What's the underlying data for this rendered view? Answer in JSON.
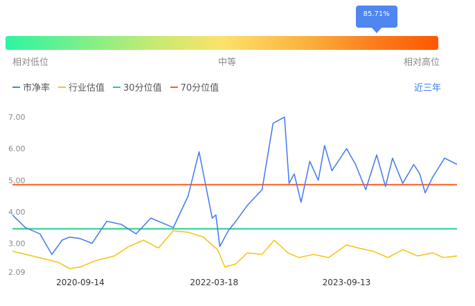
{
  "gauge": {
    "percentile_label": "85.71%",
    "percentile_value": 0.8571,
    "label_low": "相对低位",
    "label_mid": "中等",
    "label_high": "相对高位"
  },
  "range_label": "近三年",
  "chart_data": {
    "type": "line",
    "title": "",
    "xlabel": "",
    "ylabel": "",
    "x_ticks": [
      "2020-09-14",
      "2022-03-18",
      "2023-09-13"
    ],
    "x_range": [
      "2019-12-10",
      "2024-12-10"
    ],
    "y_ticks": [
      2.09,
      3.0,
      4.0,
      5.0,
      6.0,
      7.0
    ],
    "y_tick_labels": [
      "2.09",
      "3.00",
      "4.00",
      "5.00",
      "6.00",
      "7.00"
    ],
    "ylim": [
      2.09,
      7.2
    ],
    "legend": {
      "placement": "top-left"
    },
    "series": [
      {
        "name": "市净率",
        "color": "#4a7ef0",
        "x": [
          "2019-12-10",
          "2020-02-01",
          "2020-04-01",
          "2020-05-20",
          "2020-07-01",
          "2020-08-01",
          "2020-09-14",
          "2020-11-01",
          "2021-01-01",
          "2021-03-01",
          "2021-05-01",
          "2021-07-01",
          "2021-08-01",
          "2021-10-01",
          "2021-12-01",
          "2022-01-15",
          "2022-03-10",
          "2022-03-25",
          "2022-04-10",
          "2022-05-15",
          "2022-06-15",
          "2022-08-01",
          "2022-10-01",
          "2022-11-15",
          "2023-01-01",
          "2023-01-20",
          "2023-02-10",
          "2023-03-10",
          "2023-04-15",
          "2023-05-20",
          "2023-06-15",
          "2023-07-15",
          "2023-09-13",
          "2023-10-20",
          "2023-12-01",
          "2024-01-15",
          "2024-02-20",
          "2024-03-20",
          "2024-05-01",
          "2024-06-15",
          "2024-07-10",
          "2024-08-01",
          "2024-09-01",
          "2024-10-20",
          "2024-12-10"
        ],
        "y": [
          3.9,
          3.5,
          3.3,
          2.65,
          3.1,
          3.2,
          3.15,
          3.0,
          3.7,
          3.6,
          3.3,
          3.8,
          3.7,
          3.5,
          4.5,
          5.9,
          3.8,
          3.9,
          2.9,
          3.4,
          3.7,
          4.2,
          4.7,
          6.8,
          7.0,
          4.9,
          5.2,
          4.3,
          5.6,
          5.0,
          6.1,
          5.3,
          6.0,
          5.5,
          4.7,
          5.8,
          4.8,
          5.7,
          4.9,
          5.5,
          5.2,
          4.6,
          5.1,
          5.7,
          5.5
        ]
      },
      {
        "name": "行业估值",
        "color": "#f5c518",
        "x": [
          "2019-12-10",
          "2020-03-01",
          "2020-06-15",
          "2020-08-01",
          "2020-09-14",
          "2020-11-15",
          "2021-02-01",
          "2021-04-01",
          "2021-06-01",
          "2021-08-01",
          "2021-10-01",
          "2021-12-01",
          "2022-02-01",
          "2022-04-01",
          "2022-05-01",
          "2022-06-15",
          "2022-08-01",
          "2022-10-01",
          "2022-11-20",
          "2023-01-15",
          "2023-03-01",
          "2023-05-01",
          "2023-07-01",
          "2023-09-13",
          "2023-11-01",
          "2024-01-01",
          "2024-03-01",
          "2024-05-01",
          "2024-07-01",
          "2024-09-01",
          "2024-10-15",
          "2024-12-10"
        ],
        "y": [
          2.75,
          2.6,
          2.4,
          2.2,
          2.25,
          2.45,
          2.6,
          2.9,
          3.1,
          2.85,
          3.4,
          3.35,
          3.2,
          2.8,
          2.25,
          2.35,
          2.7,
          2.65,
          3.1,
          2.7,
          2.55,
          2.65,
          2.55,
          2.95,
          2.85,
          2.75,
          2.55,
          2.8,
          2.6,
          2.7,
          2.55,
          2.6
        ]
      },
      {
        "name": "30分位值",
        "color": "#22cc88",
        "x": [
          "2019-12-10",
          "2024-12-10"
        ],
        "y": [
          3.46,
          3.46
        ]
      },
      {
        "name": "70分位值",
        "color": "#ff5a1f",
        "x": [
          "2019-12-10",
          "2024-12-10"
        ],
        "y": [
          4.86,
          4.86
        ]
      }
    ]
  }
}
